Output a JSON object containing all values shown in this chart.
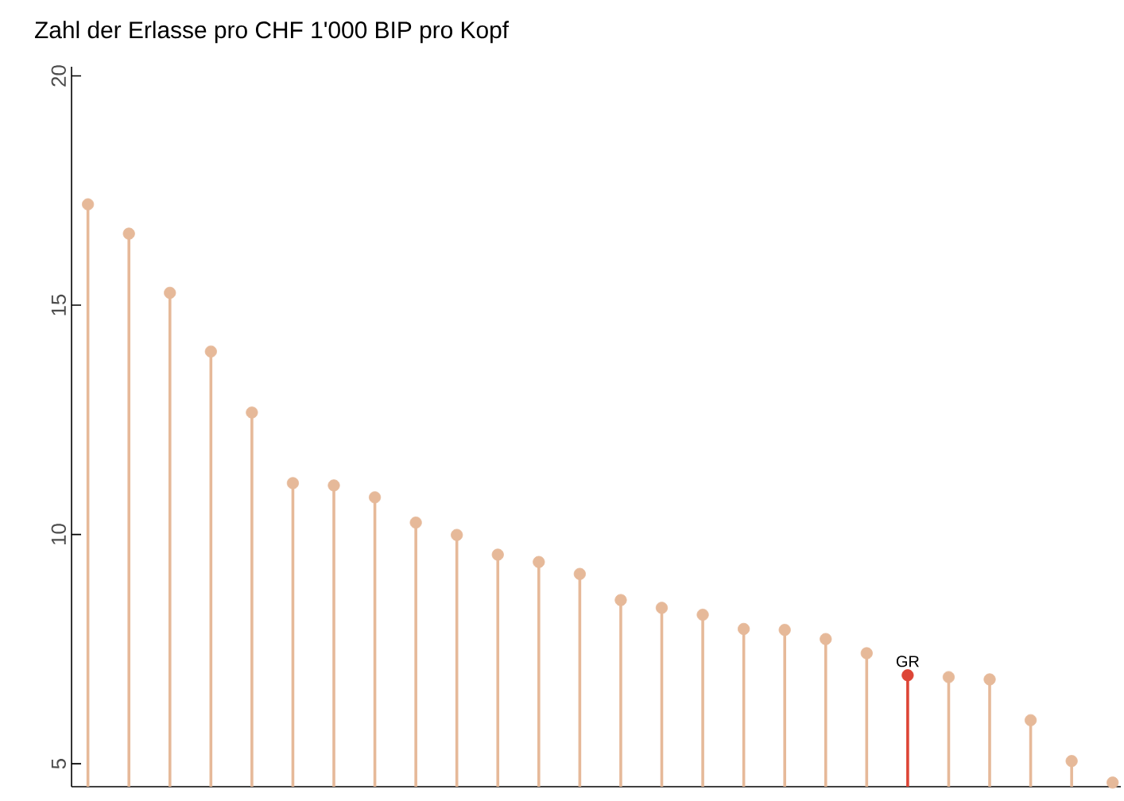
{
  "chart_data": {
    "type": "lollipop",
    "title": "Zahl der Erlasse pro CHF 1'000 BIP pro Kopf",
    "categories": [
      null,
      null,
      null,
      null,
      null,
      null,
      null,
      null,
      null,
      null,
      null,
      null,
      null,
      null,
      null,
      null,
      null,
      null,
      null,
      null,
      null,
      null,
      null,
      null,
      null,
      null
    ],
    "annotations": [
      {
        "text": "GR",
        "y": 6.93
      }
    ],
    "values": [
      17.2,
      16.56,
      15.27,
      13.99,
      12.66,
      11.12,
      11.07,
      10.81,
      10.26,
      9.99,
      9.56,
      9.4,
      9.14,
      8.57,
      8.4,
      8.25,
      7.94,
      7.92,
      7.72,
      7.41,
      6.93,
      6.89,
      6.84,
      5.95,
      5.06,
      4.59
    ],
    "colors": [
      "#e6b999",
      "#e6b999",
      "#e6b999",
      "#e6b999",
      "#e6b999",
      "#e6b999",
      "#e6b999",
      "#e6b999",
      "#e6b999",
      "#e6b999",
      "#e6b999",
      "#e6b999",
      "#e6b999",
      "#e6b999",
      "#e6b999",
      "#e6b999",
      "#e6b999",
      "#e6b999",
      "#e6b999",
      "#e6b999",
      "#dd4536",
      "#e6b999",
      "#e6b999",
      "#e6b999",
      "#e6b999",
      "#e6b999"
    ],
    "marker": "circle",
    "ylim": [
      4.5,
      20.2
    ],
    "yticks": [
      5,
      10,
      15,
      20
    ],
    "tick_labels": "y"
  }
}
